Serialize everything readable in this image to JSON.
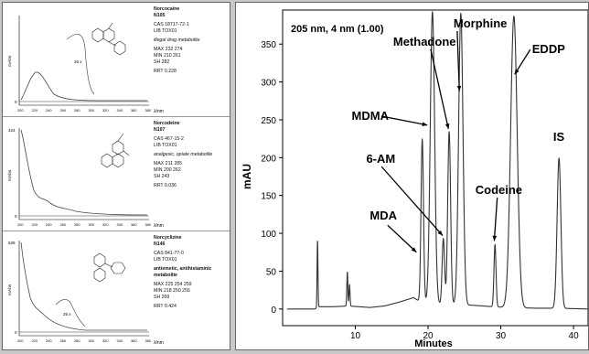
{
  "spectra": [
    {
      "name": "Norcocaine",
      "id": "N105",
      "cas": "CAS  18717-72-1",
      "lib": "LIB   TOX01",
      "note_lines": [
        "illegal drug metabolite"
      ],
      "max": "MAX  232 274",
      "min": "MIN  210 261",
      "sh": "SH    282",
      "rrt": "RRT  0.228",
      "ylabel": "mAbs",
      "ymax_label": "",
      "ymin_label": "0",
      "inset_label": "25 x",
      "xticks": [
        "200",
        "220",
        "240",
        "260",
        "280",
        "300",
        "320",
        "340",
        "360",
        "380"
      ],
      "xunit": "λ/nm"
    },
    {
      "name": "Norcodeine",
      "id": "N107",
      "cas": "CAS  467-15-2",
      "lib": "LIB   TOX01",
      "note_lines": [
        "analgesic, opiate metabolite"
      ],
      "max": "MAX  211 285",
      "min": "MIN  200 262",
      "sh": "SH    243",
      "rrt": "RRT  0.036",
      "ylabel": "mAbs",
      "ymax_label": "424",
      "ymin_label": "0",
      "inset_label": "",
      "xticks": [
        "200",
        "220",
        "240",
        "260",
        "280",
        "300",
        "320",
        "340",
        "360",
        "380"
      ],
      "xunit": "λ/nm"
    },
    {
      "name": "Norcyclizine",
      "id": "N146",
      "cas": "CAS  841-77-0",
      "lib": "LIB   TOX01",
      "note_lines": [
        "antiemetic, antihistaminic",
        "metabolite"
      ],
      "max": "MAX  225 254 259",
      "min": "MIN  218 250 256",
      "sh": "SH    269",
      "rrt": "RRT  0.424",
      "ylabel": "mAbs",
      "ymax_label": "528",
      "ymin_label": "0",
      "inset_label": "25 x",
      "xticks": [
        "200",
        "220",
        "240",
        "260",
        "280",
        "300",
        "320",
        "340",
        "360",
        "380"
      ],
      "xunit": "λ/nm"
    }
  ],
  "colors": {
    "line": "#333333",
    "axis": "#000000",
    "panel_bg": "#ffffff",
    "frame_bg": "#c8c8c8"
  },
  "chart_data": {
    "type": "line",
    "title": "205 nm, 4 nm (1.00)",
    "xlabel": "Minutes",
    "ylabel": "mAU",
    "xlim": [
      0,
      42
    ],
    "ylim": [
      -22,
      395
    ],
    "xticks": [
      10,
      20,
      30,
      40
    ],
    "yticks": [
      0,
      50,
      100,
      150,
      200,
      250,
      300,
      350
    ],
    "grid": false,
    "baseline_x": [
      0,
      4.4,
      5,
      7,
      9,
      12,
      14,
      16,
      18,
      18.5,
      19,
      22,
      26,
      29,
      31,
      35,
      38,
      42
    ],
    "baseline_y": [
      0,
      0,
      3,
      3,
      4,
      2,
      4,
      9,
      15,
      12,
      9,
      6,
      5,
      3,
      2,
      1,
      1,
      0
    ],
    "peaks": [
      {
        "label": "",
        "x": 4.8,
        "height": 88,
        "width": 0.06
      },
      {
        "label": "",
        "x": 8.9,
        "height": 45,
        "width": 0.07
      },
      {
        "label": "",
        "x": 9.2,
        "height": 28,
        "width": 0.07
      },
      {
        "label": "MDA",
        "x": 19.2,
        "height": 215,
        "width": 0.17
      },
      {
        "label": "MDMA",
        "x": 20.6,
        "height": 385,
        "width": 0.3
      },
      {
        "label": "6-AM",
        "x": 22.1,
        "height": 87,
        "width": 0.17
      },
      {
        "label": "Methadone",
        "x": 22.9,
        "height": 228,
        "width": 0.2
      },
      {
        "label": "Morphine",
        "x": 24.5,
        "height": 385,
        "width": 0.3
      },
      {
        "label": "Codeine",
        "x": 29.2,
        "height": 82,
        "width": 0.14
      },
      {
        "label": "EDDP",
        "x": 31.8,
        "height": 385,
        "width": 0.45
      },
      {
        "label": "IS",
        "x": 38.0,
        "height": 198,
        "width": 0.26
      }
    ],
    "annotations": [
      {
        "text": "Methadone",
        "text_x": 15.2,
        "text_y": 348,
        "arrow_to_x": 22.8,
        "arrow_to_y": 238
      },
      {
        "text": "Morphine",
        "text_x": 23.5,
        "text_y": 372,
        "arrow_to_x": 24.3,
        "arrow_to_y": 288
      },
      {
        "text": "MDMA",
        "text_x": 9.5,
        "text_y": 250,
        "arrow_to_x": 19.9,
        "arrow_to_y": 243
      },
      {
        "text": "6-AM",
        "text_x": 11.5,
        "text_y": 193,
        "arrow_to_x": 22.0,
        "arrow_to_y": 97
      },
      {
        "text": "MDA",
        "text_x": 12.0,
        "text_y": 118,
        "arrow_to_x": 18.4,
        "arrow_to_y": 75
      },
      {
        "text": "Codeine",
        "text_x": 26.5,
        "text_y": 152,
        "arrow_to_x": 29.1,
        "arrow_to_y": 90
      },
      {
        "text": "EDDP",
        "text_x": 34.3,
        "text_y": 338,
        "arrow_to_x": 31.9,
        "arrow_to_y": 310
      },
      {
        "text": "IS",
        "text_x": 37.2,
        "text_y": 222,
        "arrow_to_x": null,
        "arrow_to_y": null
      }
    ]
  }
}
